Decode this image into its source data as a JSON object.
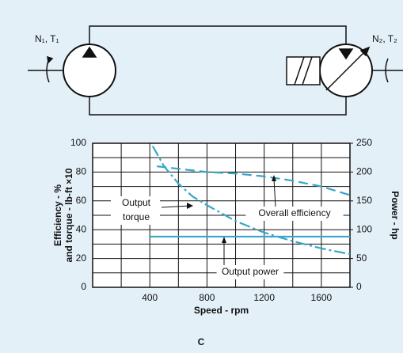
{
  "diagram": {
    "labels": [
      "N₁, T₁",
      "N₂, T₂"
    ]
  },
  "caption": "C",
  "chart_data": {
    "type": "line",
    "xlabel": "Speed - rpm",
    "ylabel": [
      "Efficiency - %",
      "and torque - lb-ft ×10"
    ],
    "y2label": "Power - hp",
    "xlim": [
      0,
      1800
    ],
    "xticks": [
      400,
      800,
      1200,
      1600
    ],
    "ylim": [
      0,
      100
    ],
    "yticks": [
      0,
      20,
      40,
      60,
      80,
      100
    ],
    "y2lim": [
      0,
      250
    ],
    "y2ticks": [
      0,
      50,
      100,
      150,
      200,
      250
    ],
    "grid": true,
    "series": [
      {
        "name": "Output torque",
        "color": "#36a6c9",
        "style": "dash-dot",
        "x": [
          420,
          500,
          600,
          700,
          800,
          1000,
          1200,
          1400,
          1600,
          1800
        ],
        "values": [
          98,
          84,
          72,
          63,
          57,
          46,
          38,
          32,
          27,
          23
        ]
      },
      {
        "name": "Overall efficiency",
        "color": "#36a6c9",
        "style": "dash",
        "x": [
          450,
          800,
          1000,
          1200,
          1400,
          1600,
          1800
        ],
        "values": [
          84,
          80,
          79,
          77,
          74,
          70,
          64
        ]
      },
      {
        "name": "Output power",
        "color": "#36a6c9",
        "style": "solid",
        "axis": "y2",
        "x": [
          400,
          1800
        ],
        "values": [
          88,
          88
        ]
      }
    ],
    "annotations": [
      "Output torque",
      "Overall efficiency",
      "Output power"
    ]
  }
}
